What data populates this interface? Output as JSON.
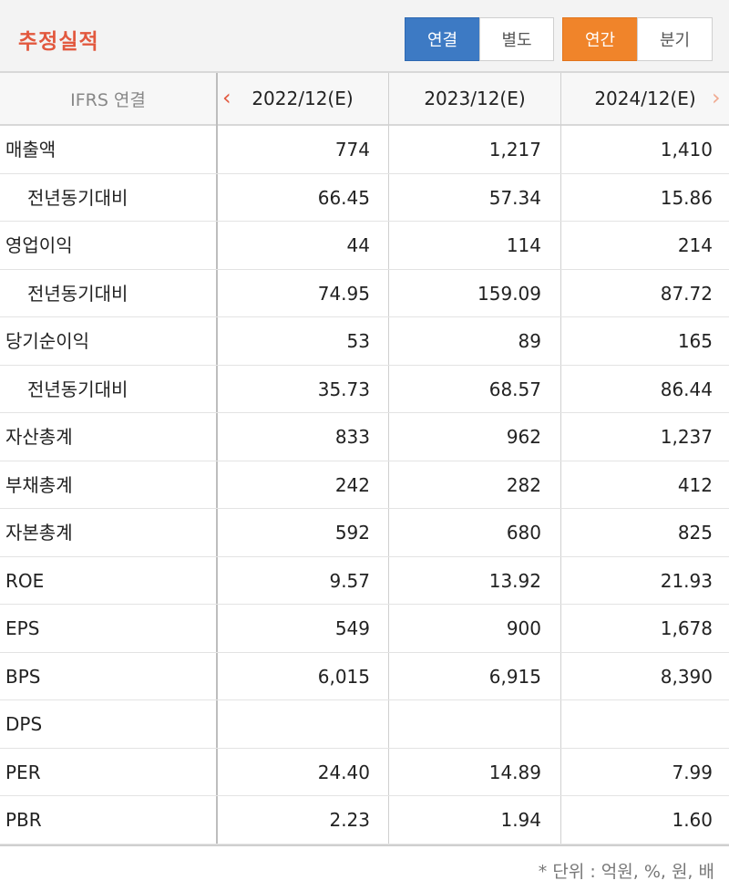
{
  "header": {
    "title": "추정실적",
    "consolidation_tabs": [
      {
        "label": "연결",
        "active": true
      },
      {
        "label": "별도",
        "active": false
      }
    ],
    "period_tabs": [
      {
        "label": "연간",
        "active": true
      },
      {
        "label": "분기",
        "active": false
      }
    ]
  },
  "table": {
    "label_header": "IFRS 연결",
    "columns": [
      "2022/12(E)",
      "2023/12(E)",
      "2024/12(E)"
    ],
    "rows": [
      {
        "label": "매출액",
        "indent": false,
        "values": [
          "774",
          "1,217",
          "1,410"
        ]
      },
      {
        "label": "전년동기대비",
        "indent": true,
        "values": [
          "66.45",
          "57.34",
          "15.86"
        ]
      },
      {
        "label": "영업이익",
        "indent": false,
        "values": [
          "44",
          "114",
          "214"
        ]
      },
      {
        "label": "전년동기대비",
        "indent": true,
        "values": [
          "74.95",
          "159.09",
          "87.72"
        ]
      },
      {
        "label": "당기순이익",
        "indent": false,
        "values": [
          "53",
          "89",
          "165"
        ]
      },
      {
        "label": "전년동기대비",
        "indent": true,
        "values": [
          "35.73",
          "68.57",
          "86.44"
        ]
      },
      {
        "label": "자산총계",
        "indent": false,
        "values": [
          "833",
          "962",
          "1,237"
        ]
      },
      {
        "label": "부채총계",
        "indent": false,
        "values": [
          "242",
          "282",
          "412"
        ]
      },
      {
        "label": "자본총계",
        "indent": false,
        "values": [
          "592",
          "680",
          "825"
        ]
      },
      {
        "label": "ROE",
        "indent": false,
        "values": [
          "9.57",
          "13.92",
          "21.93"
        ]
      },
      {
        "label": "EPS",
        "indent": false,
        "values": [
          "549",
          "900",
          "1,678"
        ]
      },
      {
        "label": "BPS",
        "indent": false,
        "values": [
          "6,015",
          "6,915",
          "8,390"
        ]
      },
      {
        "label": "DPS",
        "indent": false,
        "values": [
          "",
          "",
          ""
        ]
      },
      {
        "label": "PER",
        "indent": false,
        "values": [
          "24.40",
          "14.89",
          "7.99"
        ]
      },
      {
        "label": "PBR",
        "indent": false,
        "values": [
          "2.23",
          "1.94",
          "1.60"
        ]
      }
    ]
  },
  "footnote": "* 단위 : 억원, %, 원, 배",
  "colors": {
    "title": "#e2583e",
    "active_blue": "#3d7ac4",
    "active_orange": "#f0842a",
    "prev_arrow": "#e2583e",
    "next_arrow": "#f0a98f"
  },
  "icons": {
    "prev": "chevron-left-icon",
    "next": "chevron-right-icon"
  }
}
